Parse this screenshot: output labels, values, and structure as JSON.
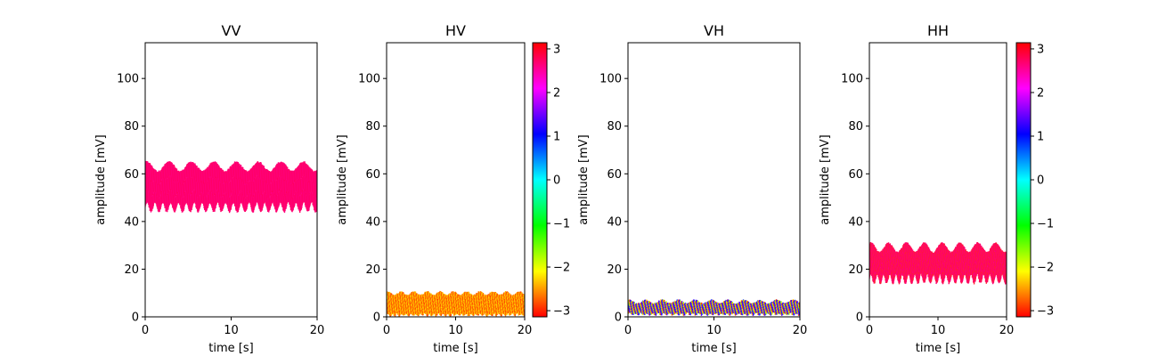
{
  "colorbar": {
    "ticks": [
      "3",
      "2",
      "1",
      "0",
      "−1",
      "−2",
      "−3"
    ],
    "tick_values": [
      3,
      2,
      1,
      0,
      -1,
      -2,
      -3
    ],
    "range": [
      -3.14159,
      3.14159
    ],
    "colormap": "hsv"
  },
  "chart_data": [
    {
      "type": "area",
      "title": "VV",
      "xlabel": "time [s]",
      "ylabel": "amplitude [mV]",
      "xlim": [
        0,
        20
      ],
      "ylim": [
        0,
        115
      ],
      "xticks": [
        "0",
        "10",
        "20"
      ],
      "xtick_values": [
        0,
        10,
        20
      ],
      "yticks": [
        "0",
        "20",
        "40",
        "60",
        "80",
        "100"
      ],
      "ytick_values": [
        0,
        20,
        40,
        60,
        80,
        100
      ],
      "grid": false,
      "has_colorbar": false,
      "band": {
        "lower_min": 44,
        "lower_max": 48,
        "upper_min": 61,
        "upper_max": 65,
        "oscillations": 22
      },
      "phase_colors": [
        "#ff0080",
        "#ff0070",
        "#ff0060"
      ]
    },
    {
      "type": "area",
      "title": "HV",
      "xlabel": "time [s]",
      "ylabel": "amplitude [mV]",
      "xlim": [
        0,
        20
      ],
      "ylim": [
        0,
        115
      ],
      "xticks": [
        "0",
        "10",
        "20"
      ],
      "xtick_values": [
        0,
        10,
        20
      ],
      "yticks": [
        "0",
        "20",
        "40",
        "60",
        "80",
        "100"
      ],
      "ytick_values": [
        0,
        20,
        40,
        60,
        80,
        100
      ],
      "grid": false,
      "has_colorbar": true,
      "band": {
        "lower_min": 0.5,
        "lower_max": 1.5,
        "upper_min": 9,
        "upper_max": 10.5,
        "oscillations": 30
      },
      "phase_colors": [
        "#ffe000",
        "#ffc000",
        "#ff9d00",
        "#ff7800",
        "#ff5a00",
        "#ff4000"
      ]
    },
    {
      "type": "area",
      "title": "VH",
      "xlabel": "time [s]",
      "ylabel": "amplitude [mV]",
      "xlim": [
        0,
        20
      ],
      "ylim": [
        0,
        115
      ],
      "xticks": [
        "0",
        "10",
        "20"
      ],
      "xtick_values": [
        0,
        10,
        20
      ],
      "yticks": [
        "0",
        "20",
        "40",
        "60",
        "80",
        "100"
      ],
      "ytick_values": [
        0,
        20,
        40,
        60,
        80,
        100
      ],
      "grid": false,
      "has_colorbar": true,
      "band": {
        "lower_min": 0.8,
        "lower_max": 1.6,
        "upper_min": 5.5,
        "upper_max": 7,
        "oscillations": 30
      },
      "phase_colors": [
        "#a0ff00",
        "#ffd000",
        "#ff4000",
        "#6000ff",
        "#3000ff",
        "#2040ff"
      ]
    },
    {
      "type": "area",
      "title": "HH",
      "xlabel": "time [s]",
      "ylabel": "amplitude [mV]",
      "xlim": [
        0,
        20
      ],
      "ylim": [
        0,
        115
      ],
      "xticks": [
        "0",
        "10",
        "20"
      ],
      "xtick_values": [
        0,
        10,
        20
      ],
      "yticks": [
        "0",
        "20",
        "40",
        "60",
        "80",
        "100"
      ],
      "ytick_values": [
        0,
        20,
        40,
        60,
        80,
        100
      ],
      "grid": false,
      "has_colorbar": true,
      "band": {
        "lower_min": 14,
        "lower_max": 18,
        "upper_min": 27,
        "upper_max": 31,
        "oscillations": 22
      },
      "phase_colors": [
        "#ff0066",
        "#ff1050",
        "#ff2030",
        "#ff0080"
      ]
    }
  ]
}
